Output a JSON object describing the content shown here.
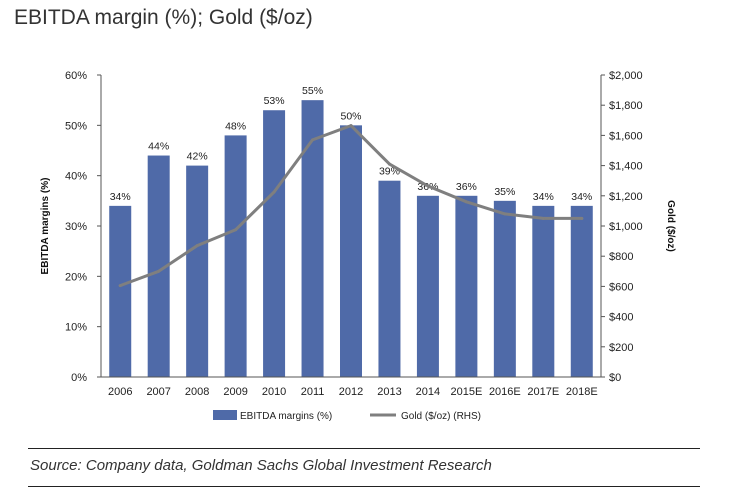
{
  "title": "EBITDA margin (%); Gold ($/oz)",
  "source": "Source: Company data, Goldman Sachs Global Investment Research",
  "chart_data": {
    "type": "bar+line",
    "categories": [
      "2006",
      "2007",
      "2008",
      "2009",
      "2010",
      "2011",
      "2012",
      "2013",
      "2014",
      "2015E",
      "2016E",
      "2017E",
      "2018E"
    ],
    "series": [
      {
        "name": "EBITDA margins (%)",
        "type": "bar",
        "axis": "left",
        "color": "#4f6aa8",
        "values": [
          34,
          44,
          42,
          48,
          53,
          55,
          50,
          39,
          36,
          36,
          35,
          34,
          34
        ],
        "labels": [
          "34%",
          "44%",
          "42%",
          "48%",
          "53%",
          "55%",
          "50%",
          "39%",
          "36%",
          "36%",
          "35%",
          "34%",
          "34%"
        ]
      },
      {
        "name": "Gold ($/oz) (RHS)",
        "type": "line",
        "axis": "right",
        "color": "#7f7f7f",
        "values": [
          605,
          700,
          870,
          975,
          1225,
          1570,
          1665,
          1410,
          1265,
          1160,
          1080,
          1050,
          1050
        ]
      }
    ],
    "ylabel_left": "EBITDA margins (%)",
    "ylabel_right": "Gold ($/oz)",
    "ylim_left": [
      0,
      60
    ],
    "ylim_right": [
      0,
      2000
    ],
    "yticks_left": [
      "0%",
      "10%",
      "20%",
      "30%",
      "40%",
      "50%",
      "60%"
    ],
    "yticks_right": [
      "$0",
      "$200",
      "$400",
      "$600",
      "$800",
      "$1,000",
      "$1,200",
      "$1,400",
      "$1,600",
      "$1,800",
      "$2,000"
    ],
    "grid": false,
    "legend_position": "bottom"
  }
}
